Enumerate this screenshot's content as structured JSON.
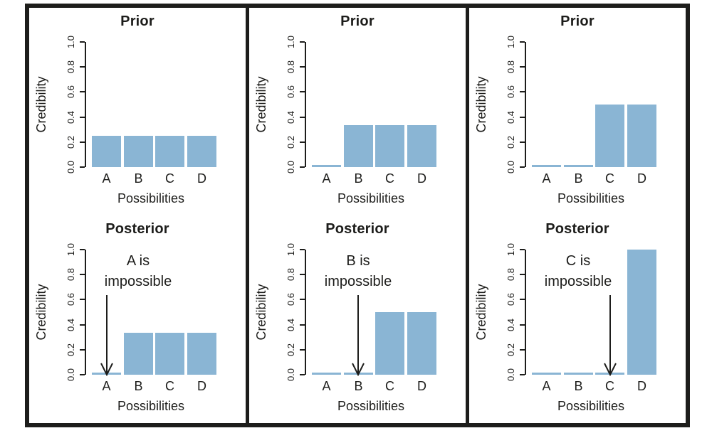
{
  "figure": {
    "frame_color": "#1d1d1b",
    "background": "#ffffff",
    "text_color": "#1d1d1b",
    "bar_fill": "#8ab5d4",
    "layout": "3 columns x 2 rows; vertical black dividers between columns; no horizontal divider"
  },
  "chart_data": [
    {
      "id": "col1-prior",
      "type": "bar",
      "title": "Prior",
      "categories": [
        "A",
        "B",
        "C",
        "D"
      ],
      "values": [
        0.25,
        0.25,
        0.25,
        0.25
      ],
      "xlabel": "Possibilities",
      "ylabel": "Credibility",
      "ylim": [
        0,
        1
      ],
      "yticks": [
        0.0,
        0.2,
        0.4,
        0.6,
        0.8,
        1.0
      ],
      "ytick_labels": [
        "0.0",
        "0.2",
        "0.4",
        "0.6",
        "0.8",
        "1.0"
      ],
      "grid": false,
      "annotation": null
    },
    {
      "id": "col1-posterior",
      "type": "bar",
      "title": "Posterior",
      "categories": [
        "A",
        "B",
        "C",
        "D"
      ],
      "values": [
        0.01,
        0.333,
        0.333,
        0.333
      ],
      "xlabel": "Possibilities",
      "ylabel": "Credibility",
      "ylim": [
        0,
        1
      ],
      "yticks": [
        0.0,
        0.2,
        0.4,
        0.6,
        0.8,
        1.0
      ],
      "ytick_labels": [
        "0.0",
        "0.2",
        "0.4",
        "0.6",
        "0.8",
        "1.0"
      ],
      "grid": false,
      "annotation": {
        "lines": [
          "A is",
          "impossible"
        ],
        "arrow_category": "A"
      }
    },
    {
      "id": "col2-prior",
      "type": "bar",
      "title": "Prior",
      "categories": [
        "A",
        "B",
        "C",
        "D"
      ],
      "values": [
        0.01,
        0.333,
        0.333,
        0.333
      ],
      "xlabel": "Possibilities",
      "ylabel": "Credibility",
      "ylim": [
        0,
        1
      ],
      "yticks": [
        0.0,
        0.2,
        0.4,
        0.6,
        0.8,
        1.0
      ],
      "ytick_labels": [
        "0.0",
        "0.2",
        "0.4",
        "0.6",
        "0.8",
        "1.0"
      ],
      "grid": false,
      "annotation": null
    },
    {
      "id": "col2-posterior",
      "type": "bar",
      "title": "Posterior",
      "categories": [
        "A",
        "B",
        "C",
        "D"
      ],
      "values": [
        0.01,
        0.01,
        0.5,
        0.5
      ],
      "xlabel": "Possibilities",
      "ylabel": "Credibility",
      "ylim": [
        0,
        1
      ],
      "yticks": [
        0.0,
        0.2,
        0.4,
        0.6,
        0.8,
        1.0
      ],
      "ytick_labels": [
        "0.0",
        "0.2",
        "0.4",
        "0.6",
        "0.8",
        "1.0"
      ],
      "grid": false,
      "annotation": {
        "lines": [
          "B is",
          "impossible"
        ],
        "arrow_category": "B"
      }
    },
    {
      "id": "col3-prior",
      "type": "bar",
      "title": "Prior",
      "categories": [
        "A",
        "B",
        "C",
        "D"
      ],
      "values": [
        0.01,
        0.01,
        0.5,
        0.5
      ],
      "xlabel": "Possibilities",
      "ylabel": "Credibility",
      "ylim": [
        0,
        1
      ],
      "yticks": [
        0.0,
        0.2,
        0.4,
        0.6,
        0.8,
        1.0
      ],
      "ytick_labels": [
        "0.0",
        "0.2",
        "0.4",
        "0.6",
        "0.8",
        "1.0"
      ],
      "grid": false,
      "annotation": null
    },
    {
      "id": "col3-posterior",
      "type": "bar",
      "title": "Posterior",
      "categories": [
        "A",
        "B",
        "C",
        "D"
      ],
      "values": [
        0.01,
        0.01,
        0.01,
        1.0
      ],
      "xlabel": "Possibilities",
      "ylabel": "Credibility",
      "ylim": [
        0,
        1
      ],
      "yticks": [
        0.0,
        0.2,
        0.4,
        0.6,
        0.8,
        1.0
      ],
      "ytick_labels": [
        "0.0",
        "0.2",
        "0.4",
        "0.6",
        "0.8",
        "1.0"
      ],
      "grid": false,
      "annotation": {
        "lines": [
          "C is",
          "impossible"
        ],
        "arrow_category": "C"
      }
    }
  ]
}
